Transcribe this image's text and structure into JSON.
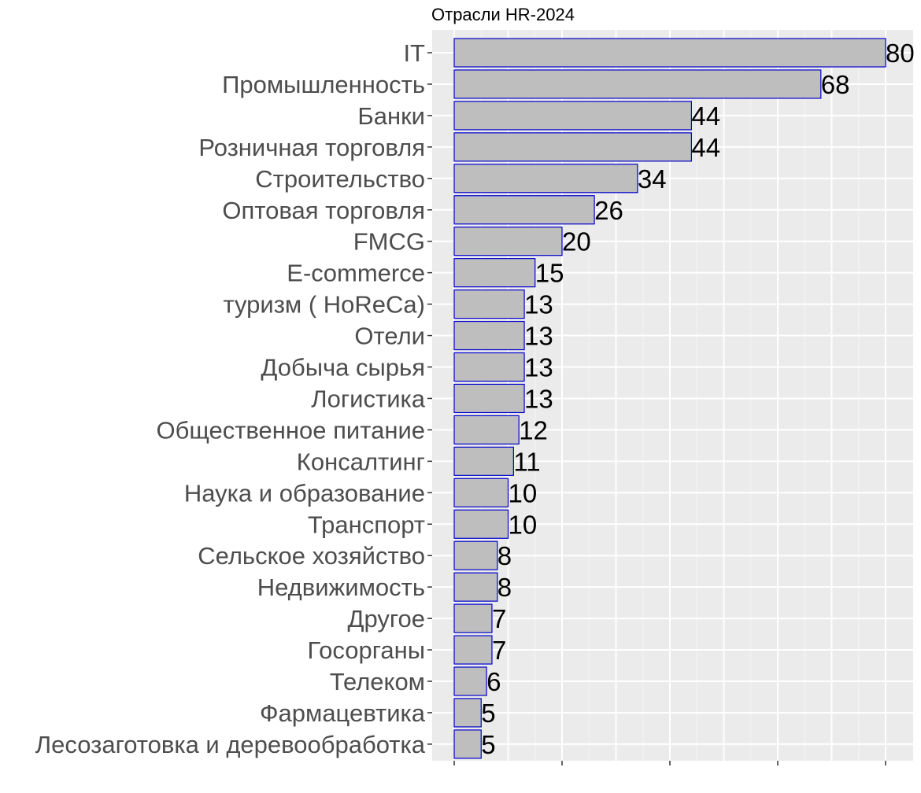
{
  "chart_data": {
    "type": "bar",
    "orientation": "horizontal",
    "title": "Отрасли HR-2024",
    "xlabel": "",
    "ylabel": "",
    "xlim": [
      0,
      80
    ],
    "grid": true,
    "categories": [
      "IT",
      "Промышленность",
      "Банки",
      "Розничная торговля",
      "Строительство",
      "Оптовая торговля",
      "FMCG",
      "E-commerce",
      "туризм ( HoReCa)",
      "Отели",
      "Добыча сырья",
      "Логистика",
      "Общественное питание",
      "Консалтинг",
      "Наука и образование",
      "Транспорт",
      "Сельское хозяйство",
      "Недвижимость",
      "Другое",
      "Госорганы",
      "Телеком",
      "Фармацевтика",
      "Лесозаготовка и деревообработка"
    ],
    "values": [
      80,
      68,
      44,
      44,
      34,
      26,
      20,
      15,
      13,
      13,
      13,
      13,
      12,
      11,
      10,
      10,
      8,
      8,
      7,
      7,
      6,
      5,
      5
    ],
    "data_labels": [
      "80",
      "68",
      "44",
      "44",
      "34",
      "26",
      "20",
      "15",
      "13",
      "13",
      "13",
      "13",
      "12",
      "11",
      "10",
      "10",
      "8",
      "8",
      "7",
      "7",
      "6",
      "5",
      "5"
    ],
    "colors": {
      "bar_fill": "#bebebe",
      "bar_stroke": "#0000cd",
      "panel_bg": "#ebebeb",
      "grid_major": "#ffffff",
      "grid_minor": "#f5f5f5",
      "axis_text": "#4d4d4d",
      "tick": "#333333"
    }
  }
}
